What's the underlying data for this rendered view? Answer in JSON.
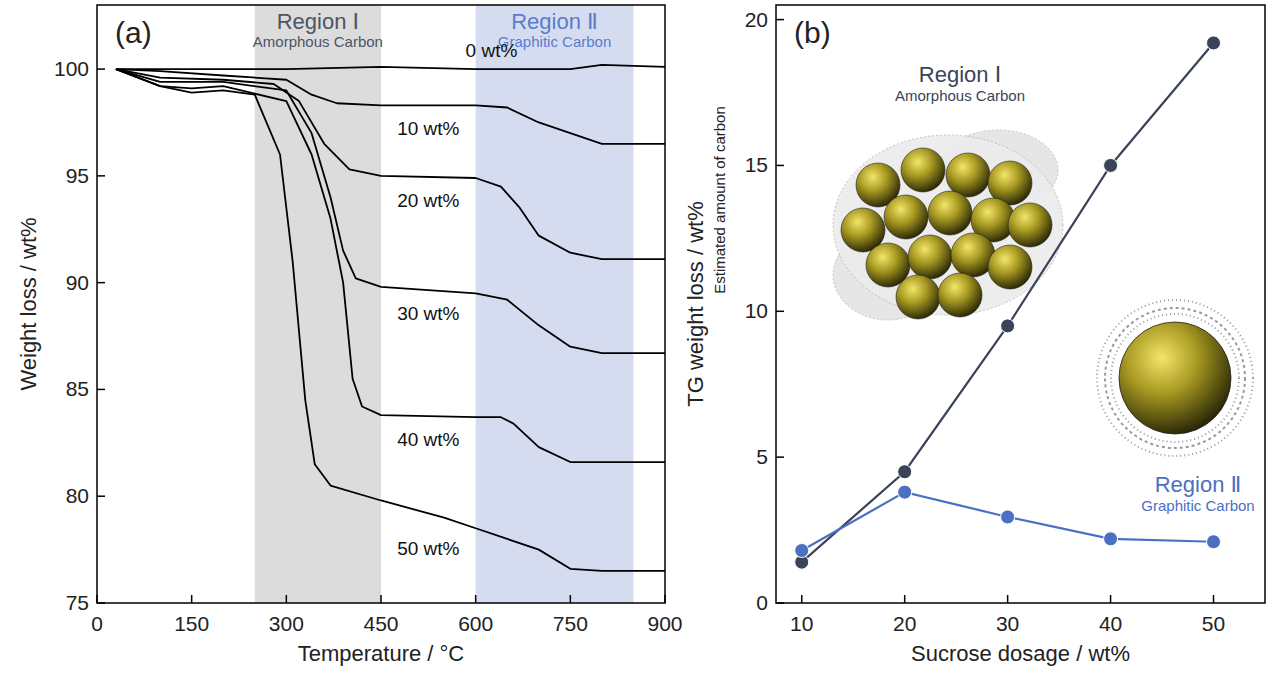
{
  "chart_data": [
    {
      "type": "line",
      "panel": "(a)",
      "x_label": "Temperature / °C",
      "y_label": "Weight loss / wt%",
      "xlim": [
        0,
        900
      ],
      "ylim": [
        75,
        103
      ],
      "xticks": [
        0,
        150,
        300,
        450,
        600,
        750,
        900
      ],
      "yticks": [
        75,
        80,
        85,
        90,
        95,
        100
      ],
      "regions": [
        {
          "label": "Region Ⅰ",
          "sublabel": "Amorphous Carbon",
          "x": [
            250,
            450
          ],
          "color": "#dcdcdc"
        },
        {
          "label": "Region Ⅱ",
          "sublabel": "Graphitic Carbon",
          "x": [
            600,
            850
          ],
          "color": "#d5dcf0"
        }
      ],
      "series": [
        {
          "name": "0 wt%",
          "color": "#000000",
          "x": [
            30,
            150,
            300,
            450,
            600,
            750,
            800,
            900
          ],
          "values": [
            100,
            100,
            100,
            100.1,
            100,
            100,
            100.2,
            100.1
          ]
        },
        {
          "name": "10 wt%",
          "color": "#000000",
          "x": [
            30,
            100,
            200,
            300,
            340,
            380,
            450,
            600,
            650,
            700,
            750,
            800,
            900
          ],
          "values": [
            100,
            99.9,
            99.7,
            99.5,
            98.8,
            98.4,
            98.3,
            98.3,
            98.2,
            97.5,
            97,
            96.5,
            96.5
          ]
        },
        {
          "name": "20 wt%",
          "color": "#000000",
          "x": [
            30,
            100,
            200,
            280,
            320,
            360,
            400,
            450,
            600,
            640,
            670,
            700,
            750,
            800,
            900
          ],
          "values": [
            100,
            99.6,
            99.5,
            99.3,
            98.5,
            96.5,
            95.3,
            95,
            94.9,
            94.5,
            93.5,
            92.2,
            91.4,
            91.1,
            91.1
          ]
        },
        {
          "name": "30 wt%",
          "color": "#000000",
          "x": [
            30,
            100,
            200,
            300,
            340,
            370,
            390,
            410,
            450,
            600,
            650,
            700,
            750,
            800,
            900
          ],
          "values": [
            100,
            99.4,
            99.4,
            99,
            97,
            94,
            91.5,
            90.2,
            89.8,
            89.5,
            89.2,
            88,
            87,
            86.7,
            86.7
          ]
        },
        {
          "name": "40 wt%",
          "color": "#000000",
          "x": [
            30,
            100,
            150,
            200,
            300,
            340,
            370,
            390,
            405,
            420,
            450,
            600,
            640,
            660,
            700,
            750,
            800,
            900
          ],
          "values": [
            100,
            99.2,
            99.1,
            99.2,
            98.5,
            96,
            93,
            90,
            85.5,
            84.2,
            83.8,
            83.7,
            83.7,
            83.4,
            82.3,
            81.6,
            81.6,
            81.6
          ]
        },
        {
          "name": "50 wt%",
          "color": "#000000",
          "x": [
            30,
            100,
            150,
            200,
            250,
            290,
            310,
            330,
            345,
            370,
            450,
            550,
            600,
            650,
            700,
            750,
            800,
            900
          ],
          "values": [
            100,
            99.2,
            98.9,
            99,
            98.8,
            96,
            91,
            84.5,
            81.5,
            80.5,
            79.8,
            79,
            78.5,
            78,
            77.5,
            76.6,
            76.5,
            76.5
          ]
        }
      ]
    },
    {
      "type": "line",
      "panel": "(b)",
      "x_label": "Sucrose dosage / wt%",
      "y_label": "TG weight loss / wt%",
      "y_sublabel": "Estimated amount of carbon",
      "x": [
        10,
        20,
        30,
        40,
        50
      ],
      "xlim": [
        7.5,
        55
      ],
      "ylim": [
        0,
        20.5
      ],
      "xticks": [
        10,
        20,
        30,
        40,
        50
      ],
      "yticks": [
        0,
        5,
        10,
        15,
        20
      ],
      "marker": "circle",
      "series": [
        {
          "name": "Region Ⅰ",
          "sublabel": "Amorphous Carbon",
          "color": "#3b4358",
          "values": [
            1.4,
            4.5,
            9.5,
            15,
            19.2
          ]
        },
        {
          "name": "Region Ⅱ",
          "sublabel": "Graphitic Carbon",
          "color": "#4b70c2",
          "values": [
            1.8,
            3.8,
            2.95,
            2.2,
            2.1
          ]
        }
      ]
    }
  ]
}
